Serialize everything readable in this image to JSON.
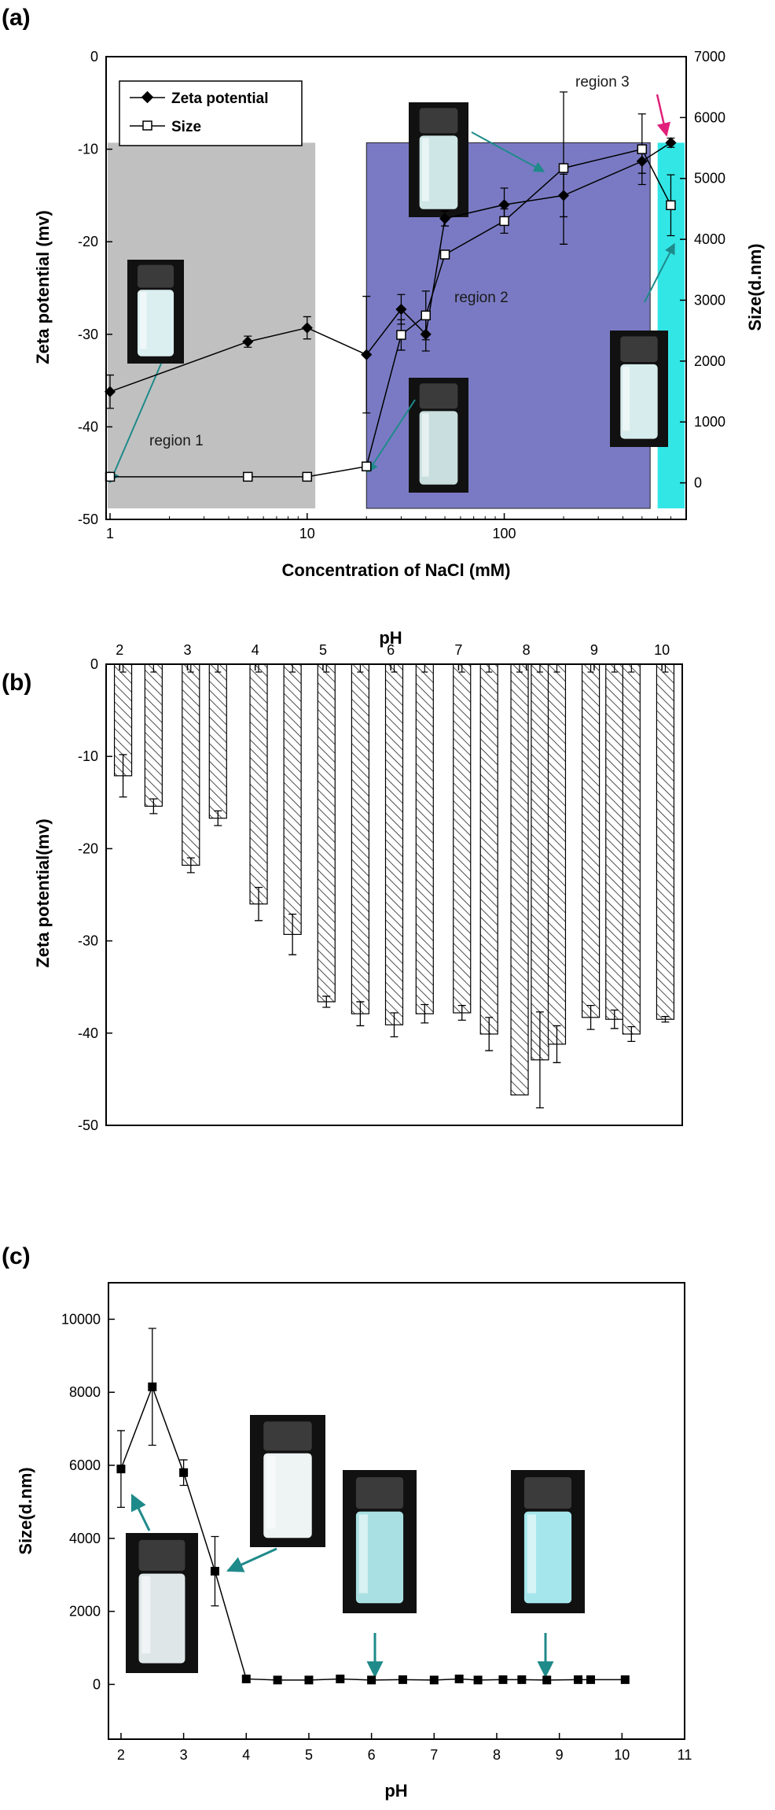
{
  "chart_data": [
    {
      "panel": "(a)",
      "type": "line",
      "xlabel": "Concentration of NaCl (mM)",
      "ylabel": "Zeta potential (mv)",
      "y2label": "Size(d.nm)",
      "xscale": "log",
      "xlim": [
        1,
        800
      ],
      "ylim": [
        -50,
        0
      ],
      "y2lim": [
        -600,
        7000
      ],
      "xticks": [
        "1",
        "10",
        "100"
      ],
      "yticks": [
        "0",
        "-10",
        "-20",
        "-30",
        "-40",
        "-50"
      ],
      "y2ticks": [
        "0",
        "1000",
        "2000",
        "3000",
        "4000",
        "5000",
        "6000",
        "7000"
      ],
      "legend": {
        "position": "top-left",
        "entries": [
          "Zeta potential",
          "Size"
        ]
      },
      "regions": [
        {
          "label": "region 1",
          "x": [
            1,
            11
          ],
          "color": "#c0c0c0"
        },
        {
          "label": "region 2",
          "x": [
            20,
            550
          ],
          "color": "#7a7ac4"
        },
        {
          "label": "region 3",
          "x": [
            600,
            800
          ],
          "color": "#33e6e6"
        }
      ],
      "series": [
        {
          "name": "Zeta potential",
          "axis": "left",
          "marker": "filled-square",
          "x": [
            1,
            5,
            10,
            20,
            30,
            40,
            50,
            100,
            200,
            500,
            700
          ],
          "y": [
            -36.2,
            -30.8,
            -29.3,
            -32.2,
            -27.3,
            -30.0,
            -17.5,
            -16.0,
            -15.0,
            -11.3,
            -9.3
          ],
          "err": [
            1.8,
            0.6,
            1.2,
            6.3,
            1.6,
            1.8,
            0.8,
            1.8,
            2.3,
            1.3,
            0.5
          ]
        },
        {
          "name": "Size",
          "axis": "right",
          "marker": "open-square",
          "x": [
            1,
            5,
            10,
            20,
            30,
            40,
            50,
            100,
            200,
            500,
            700
          ],
          "y": [
            100,
            100,
            100,
            270,
            2430,
            2750,
            3750,
            4300,
            5170,
            5480,
            4560
          ],
          "err": [
            0,
            0,
            0,
            0,
            250,
            400,
            0,
            200,
            1250,
            580,
            500
          ]
        }
      ]
    },
    {
      "panel": "(b)",
      "type": "bar",
      "xlabel": "pH",
      "ylabel": "Zeta potential(mv)",
      "xaxis_position": "top",
      "xlim": [
        1.8,
        10.3
      ],
      "ylim": [
        -50,
        0
      ],
      "xticks": [
        "2",
        "3",
        "4",
        "5",
        "6",
        "7",
        "8",
        "9",
        "10"
      ],
      "yticks": [
        "0",
        "-10",
        "-20",
        "-30",
        "-40",
        "-50"
      ],
      "x": [
        2.05,
        2.5,
        3.05,
        3.45,
        4.05,
        4.55,
        5.05,
        5.55,
        6.05,
        6.5,
        7.05,
        7.45,
        7.9,
        8.2,
        8.45,
        8.95,
        9.3,
        9.55,
        10.05
      ],
      "values": [
        -12.1,
        -15.4,
        -21.8,
        -16.7,
        -26.0,
        -29.3,
        -36.6,
        -37.9,
        -39.1,
        -37.9,
        -37.8,
        -40.1,
        -46.7,
        -42.9,
        -41.2,
        -38.3,
        -38.5,
        -40.1,
        -38.5
      ],
      "err": [
        2.3,
        0.8,
        0.8,
        0.8,
        1.8,
        2.2,
        0.6,
        1.3,
        1.3,
        1.0,
        0.8,
        1.8,
        0,
        5.2,
        2.0,
        1.3,
        1.0,
        0.8,
        0.3
      ]
    },
    {
      "panel": "(c)",
      "type": "line",
      "xlabel": "pH",
      "ylabel": "Size(d.nm)",
      "xlim": [
        1.8,
        11
      ],
      "ylim": [
        -1500,
        11000
      ],
      "xticks": [
        "2",
        "3",
        "4",
        "5",
        "6",
        "7",
        "8",
        "9",
        "10",
        "11"
      ],
      "yticks": [
        "0",
        "2000",
        "4000",
        "6000",
        "8000",
        "10000"
      ],
      "series": [
        {
          "marker": "filled-square",
          "x": [
            2.0,
            2.5,
            3.0,
            3.5,
            4.0,
            4.5,
            5.0,
            5.5,
            6.0,
            6.5,
            7.0,
            7.4,
            7.7,
            8.1,
            8.4,
            8.8,
            9.3,
            9.5,
            10.05
          ],
          "y": [
            5900,
            8150,
            5800,
            3100,
            150,
            120,
            120,
            150,
            120,
            130,
            120,
            150,
            120,
            130,
            130,
            120,
            130,
            130,
            130
          ],
          "err": [
            1050,
            1600,
            350,
            950,
            0,
            0,
            0,
            0,
            0,
            0,
            0,
            0,
            0,
            0,
            0,
            0,
            0,
            0,
            0
          ]
        }
      ]
    }
  ]
}
